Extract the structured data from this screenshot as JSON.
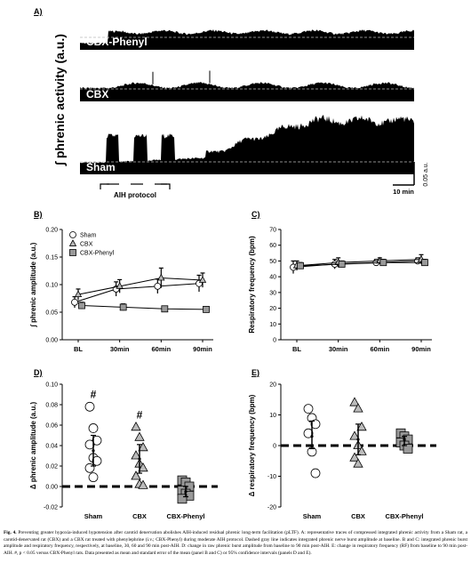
{
  "panel_labels": {
    "a": "A)",
    "b": "B)",
    "c": "C)",
    "d": "D)",
    "e": "E)"
  },
  "panel_a": {
    "ylabel": "∫ phrenic activity (a.u.)",
    "traces": [
      "CBX-Phenyl",
      "CBX",
      "Sham"
    ],
    "protocol_label": "AIH protocol",
    "scale_y": "0.05 a.u.",
    "scale_x": "10 min"
  },
  "chart_data": [
    {
      "panel": "B",
      "type": "line",
      "ylabel": "∫ phrenic amplitude (a.u.)",
      "categories": [
        "BL",
        "30min",
        "60min",
        "90min"
      ],
      "ylim": [
        0,
        0.2
      ],
      "yticks": [
        "0.00",
        "0.05",
        "0.10",
        "0.15",
        "0.20"
      ],
      "legend": [
        "Sham",
        "CBX",
        "CBX-Phenyl"
      ],
      "series": [
        {
          "name": "Sham",
          "values": [
            0.068,
            0.092,
            0.097,
            0.102
          ],
          "err": [
            0.01,
            0.013,
            0.013,
            0.015
          ]
        },
        {
          "name": "CBX",
          "values": [
            0.082,
            0.097,
            0.112,
            0.108
          ],
          "err": [
            0.01,
            0.012,
            0.018,
            0.013
          ]
        },
        {
          "name": "CBX-Phenyl",
          "values": [
            0.062,
            0.059,
            0.056,
            0.055
          ],
          "err": [
            0.006,
            0.006,
            0.005,
            0.005
          ]
        }
      ]
    },
    {
      "panel": "C",
      "type": "line",
      "ylabel": "Respiratory frequency (bpm)",
      "categories": [
        "BL",
        "30min",
        "60min",
        "90min"
      ],
      "ylim": [
        0,
        70
      ],
      "yticks": [
        "0",
        "10",
        "20",
        "30",
        "40",
        "50",
        "60",
        "70"
      ],
      "series": [
        {
          "name": "Sham",
          "values": [
            46,
            48,
            49,
            50
          ],
          "err": [
            4,
            3,
            2,
            2
          ]
        },
        {
          "name": "CBX",
          "values": [
            47,
            49,
            50,
            51
          ],
          "err": [
            3,
            3,
            2,
            3
          ]
        },
        {
          "name": "CBX-Phenyl",
          "values": [
            47,
            48,
            49,
            49
          ],
          "err": [
            2,
            2,
            2,
            2
          ]
        }
      ]
    },
    {
      "panel": "D",
      "type": "scatter",
      "ylabel": "Δ phrenic amplitude (a.u.)",
      "categories": [
        "Sham",
        "CBX",
        "CBX-Phenyl"
      ],
      "ylim": [
        -0.02,
        0.1
      ],
      "yticks": [
        "-0.02",
        "0.00",
        "0.02",
        "0.04",
        "0.06",
        "0.08",
        "0.10"
      ],
      "annotations": [
        "#",
        "#"
      ],
      "points": [
        [
          0.078,
          0.057,
          0.045,
          0.041,
          0.028,
          0.025,
          0.018,
          0.009
        ],
        [
          0.058,
          0.048,
          0.038,
          0.03,
          0.022,
          0.018,
          0.01,
          0.002,
          0.001
        ],
        [
          0.006,
          0.004,
          0.0,
          -0.004,
          -0.007,
          -0.009,
          -0.012
        ]
      ],
      "means": [
        0.035,
        0.027,
        -0.005
      ],
      "ci": [
        [
          0.02,
          0.05
        ],
        [
          0.013,
          0.041
        ],
        [
          -0.01,
          0.0
        ]
      ]
    },
    {
      "panel": "E",
      "type": "scatter",
      "ylabel": "Δ respiratory frequency (bpm)",
      "categories": [
        "Sham",
        "CBX",
        "CBX-Phenyl"
      ],
      "ylim": [
        -20,
        20
      ],
      "yticks": [
        "-20",
        "-10",
        "0",
        "10",
        "20"
      ],
      "points": [
        [
          12,
          9,
          7,
          4,
          -2,
          -9
        ],
        [
          14,
          12,
          6,
          3,
          0,
          -2,
          -4,
          -6
        ],
        [
          4,
          3,
          2,
          1,
          0,
          -1
        ]
      ],
      "means": [
        3,
        2,
        2
      ],
      "ci": [
        [
          -1,
          8
        ],
        [
          -3,
          7
        ],
        [
          0,
          3
        ]
      ]
    }
  ],
  "caption": {
    "bold": "Fig. 4.",
    "text": " Preventing greater hypoxia-induced hypotension after carotid denervation abolishes AIH-induced residual phrenic long-term facilitation (pLTF). A: representative traces of compressed integrated phrenic activity from a Sham rat, a carotid-denervated rat (CBX) and a CBX rat treated with phenylephrine (i.v.; CBX-Phenyl) during moderate AIH protocol. Dashed gray line indicates integrated phrenic nerve burst amplitude at baseline. B and C: integrated phrenic burst amplitude and respiratory frequency, respectively, at baseline, 30, 60 and 90 min post-AIH. D: change in raw phrenic burst amplitude from baseline to 90 min post-AIH. E: change in respiratory frequency (RF) from baseline to 90 min post-AIH. #, p < 0.05 versus CBX-Phenyl rats. Data presented as mean and standard error of the mean (panel B and C) or 95% confidence intervals (panels D and E)."
  }
}
